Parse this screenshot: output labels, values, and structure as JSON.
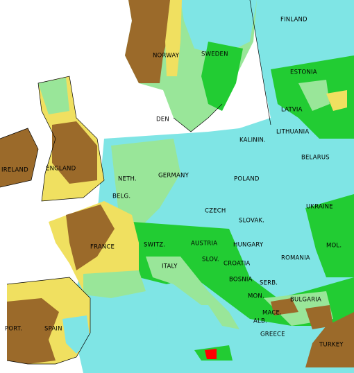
{
  "map": {
    "labels": [
      {
        "text": "FINLAND"
      },
      {
        "text": "NORWAY"
      },
      {
        "text": "SWEDEN"
      },
      {
        "text": "ESTONIA"
      },
      {
        "text": "LATVIA"
      },
      {
        "text": "LITHUANIA"
      },
      {
        "text": "KALININ."
      },
      {
        "text": "BELARUS"
      },
      {
        "text": "DEN"
      },
      {
        "text": "IRELAND"
      },
      {
        "text": "ENGLAND"
      },
      {
        "text": "NETH."
      },
      {
        "text": "GERMANY"
      },
      {
        "text": "POLAND"
      },
      {
        "text": "BELG."
      },
      {
        "text": "CZECH"
      },
      {
        "text": "SLOVAK."
      },
      {
        "text": "UKRAINE"
      },
      {
        "text": "FRANCE"
      },
      {
        "text": "SWITZ."
      },
      {
        "text": "AUSTRIA"
      },
      {
        "text": "HUNGARY"
      },
      {
        "text": "MOL."
      },
      {
        "text": "ROMANIA"
      },
      {
        "text": "SLOV."
      },
      {
        "text": "CROATIA"
      },
      {
        "text": "ITALY"
      },
      {
        "text": "BOSNIA"
      },
      {
        "text": "SERB."
      },
      {
        "text": "MON."
      },
      {
        "text": "BULGARIA"
      },
      {
        "text": "MACE."
      },
      {
        "text": "ALB."
      },
      {
        "text": "GREECE"
      },
      {
        "text": "PORT."
      },
      {
        "text": "SPAIN"
      },
      {
        "text": "TURKEY"
      }
    ]
  }
}
